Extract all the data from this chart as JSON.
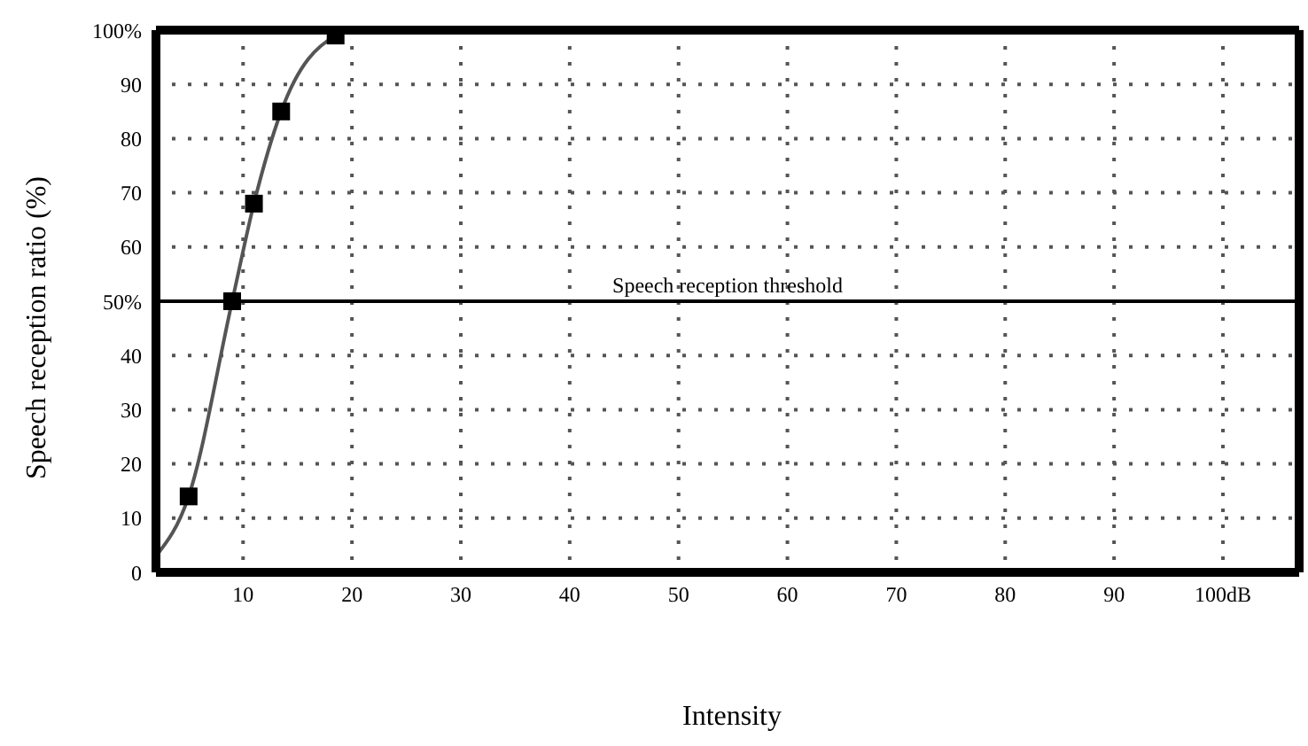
{
  "chart_data": {
    "type": "line",
    "xlabel": "Intensity",
    "ylabel": "Speech reception ratio (%)",
    "xlim": [
      2,
      107
    ],
    "ylim": [
      0,
      100
    ],
    "xticks": [
      10,
      20,
      30,
      40,
      50,
      60,
      70,
      80,
      90,
      {
        "value": 100,
        "label": "100dB"
      }
    ],
    "yticks": [
      0,
      10,
      20,
      30,
      40,
      {
        "value": 50,
        "label": "50%"
      },
      60,
      70,
      80,
      90,
      {
        "value": 100,
        "label": "100%"
      }
    ],
    "grid": true,
    "line_style": "solid",
    "series": [
      {
        "type": "line",
        "color": "#555555",
        "marker": "none",
        "x": [
          2,
          5,
          9,
          11,
          13.5,
          18.5,
          20
        ],
        "values": [
          3,
          14,
          50,
          68,
          85,
          99,
          100
        ]
      },
      {
        "type": "scatter",
        "color": "#000000",
        "marker": "square",
        "x": [
          5,
          9,
          11,
          13.5,
          18.5
        ],
        "values": [
          14,
          50,
          68,
          85,
          99
        ]
      }
    ],
    "ref_lines": [
      {
        "axis": "y",
        "value": 50,
        "label": "Speech reception threshold",
        "color": "#000000"
      }
    ]
  }
}
